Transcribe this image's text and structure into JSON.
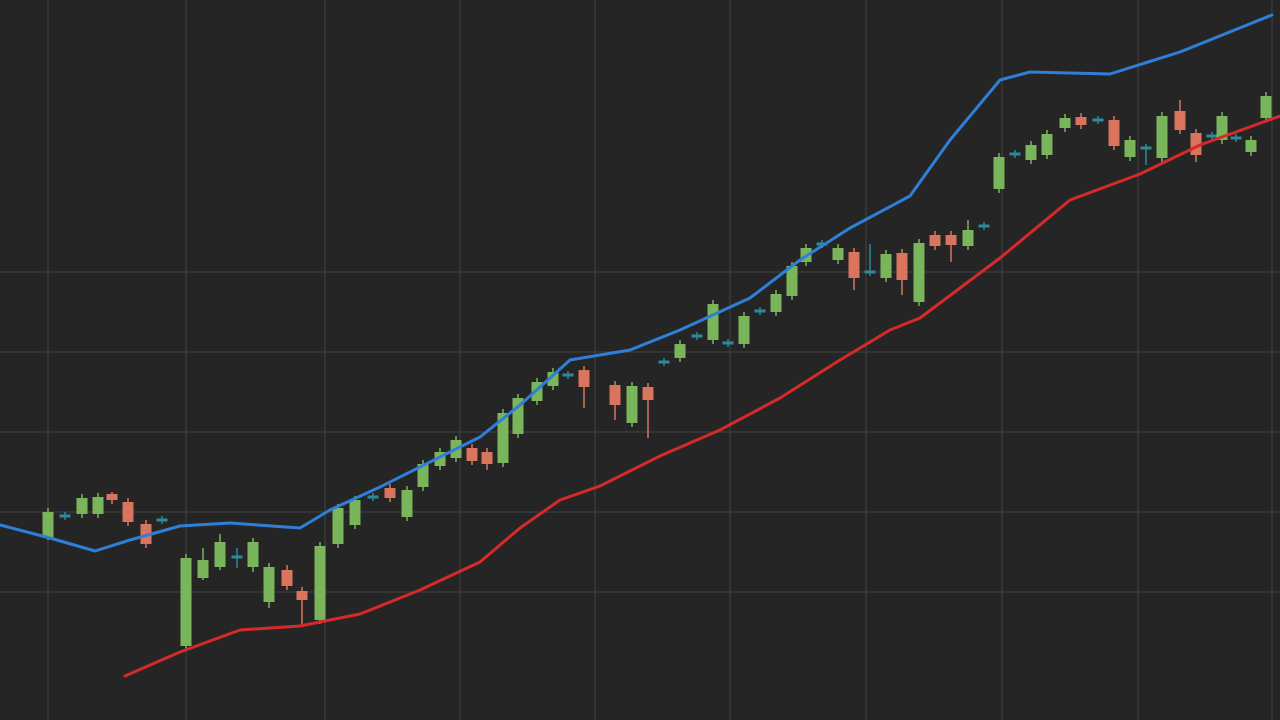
{
  "chart_data": {
    "type": "candlestick",
    "background": "#252525",
    "grid": true,
    "grid_color": "#3a3a3a",
    "xlim": [
      0,
      1280
    ],
    "ylim": [
      0,
      720
    ],
    "xticks": [
      48,
      186,
      325,
      460,
      595,
      730,
      866,
      1002,
      1138,
      1272
    ],
    "yticks": [
      128,
      208,
      288,
      368,
      448
    ],
    "up_color": "#7ab55c",
    "down_color": "#d9745e",
    "doji_color": "#2d8a9a",
    "candles": {
      "x": [
        48,
        65,
        82,
        98,
        112,
        128,
        146,
        162,
        186,
        203,
        220,
        237,
        253,
        269,
        287,
        302,
        320,
        338,
        355,
        373,
        390,
        407,
        423,
        440,
        456,
        472,
        487,
        503,
        518,
        537,
        553,
        568,
        584,
        615,
        632,
        648,
        664,
        680,
        697,
        713,
        728,
        744,
        760,
        776,
        792,
        806,
        822,
        838,
        854,
        870,
        886,
        902,
        919,
        935,
        951,
        968,
        984,
        999,
        1015,
        1031,
        1047,
        1065,
        1081,
        1098,
        1114,
        1130,
        1146,
        1162,
        1180,
        1196,
        1212,
        1222,
        1236,
        1251,
        1266
      ],
      "open": [
        182,
        204,
        206,
        206,
        226,
        218,
        196,
        200,
        74,
        142,
        153,
        163,
        153,
        118,
        150,
        129,
        100,
        176,
        195,
        223,
        232,
        203,
        233,
        254,
        262,
        272,
        268,
        257,
        286,
        319,
        334,
        345,
        350,
        335,
        297,
        333,
        358,
        362,
        384,
        380,
        377,
        376,
        409,
        408,
        424,
        458,
        476,
        460,
        468,
        448,
        442,
        467,
        418,
        485,
        485,
        474,
        494,
        531,
        566,
        560,
        565,
        592,
        603,
        600,
        600,
        563,
        572,
        562,
        609,
        587,
        584,
        580,
        582,
        568,
        602
      ],
      "high": [
        212,
        208,
        226,
        227,
        228,
        222,
        200,
        204,
        166,
        172,
        186,
        172,
        182,
        157,
        155,
        133,
        178,
        216,
        224,
        227,
        236,
        234,
        260,
        272,
        284,
        276,
        272,
        311,
        326,
        342,
        352,
        349,
        354,
        339,
        338,
        337,
        362,
        380,
        388,
        420,
        381,
        408,
        413,
        430,
        458,
        476,
        480,
        476,
        472,
        476,
        470,
        471,
        481,
        489,
        489,
        500,
        498,
        567,
        570,
        579,
        590,
        606,
        607,
        604,
        604,
        584,
        576,
        608,
        620,
        591,
        588,
        608,
        586,
        584,
        628
      ],
      "low": [
        180,
        200,
        202,
        202,
        216,
        194,
        172,
        196,
        72,
        140,
        150,
        152,
        148,
        112,
        130,
        95,
        96,
        172,
        191,
        219,
        218,
        199,
        229,
        250,
        258,
        255,
        250,
        253,
        282,
        315,
        330,
        341,
        312,
        300,
        293,
        282,
        354,
        358,
        380,
        376,
        373,
        372,
        405,
        404,
        420,
        454,
        472,
        456,
        430,
        444,
        438,
        425,
        414,
        470,
        458,
        470,
        490,
        527,
        562,
        556,
        561,
        588,
        591,
        596,
        570,
        559,
        555,
        558,
        586,
        558,
        580,
        576,
        578,
        564,
        598
      ],
      "close": [
        208,
        204,
        222,
        223,
        220,
        198,
        176,
        200,
        162,
        160,
        178,
        163,
        178,
        153,
        134,
        120,
        174,
        212,
        220,
        223,
        222,
        230,
        256,
        268,
        280,
        259,
        256,
        307,
        322,
        338,
        348,
        345,
        333,
        315,
        334,
        320,
        358,
        376,
        384,
        416,
        377,
        404,
        409,
        426,
        454,
        472,
        476,
        472,
        442,
        448,
        466,
        440,
        477,
        474,
        475,
        490,
        494,
        563,
        566,
        575,
        586,
        602,
        595,
        600,
        574,
        580,
        572,
        604,
        590,
        565,
        584,
        604,
        582,
        580,
        624
      ]
    },
    "lines": [
      {
        "color": "#2f7fd8",
        "x": [
          0,
          50,
          95,
          130,
          180,
          230,
          300,
          330,
          380,
          430,
          480,
          520,
          570,
          630,
          680,
          750,
          800,
          850,
          910,
          950,
          1000,
          1030,
          1110,
          1180,
          1272
        ],
        "values": [
          195,
          182,
          169,
          180,
          194,
          197,
          192,
          210,
          233,
          258,
          283,
          315,
          360,
          370,
          390,
          422,
          460,
          492,
          524,
          580,
          640,
          648,
          646,
          668,
          705
        ]
      },
      {
        "color": "#d42a2a",
        "x": [
          125,
          180,
          240,
          300,
          360,
          420,
          480,
          520,
          560,
          600,
          660,
          720,
          780,
          840,
          890,
          920,
          960,
          1000,
          1070,
          1140,
          1200,
          1280
        ],
        "values": [
          44,
          68,
          90,
          94,
          106,
          130,
          158,
          192,
          220,
          234,
          264,
          290,
          322,
          360,
          390,
          402,
          432,
          462,
          520,
          546,
          575,
          604
        ]
      }
    ]
  }
}
